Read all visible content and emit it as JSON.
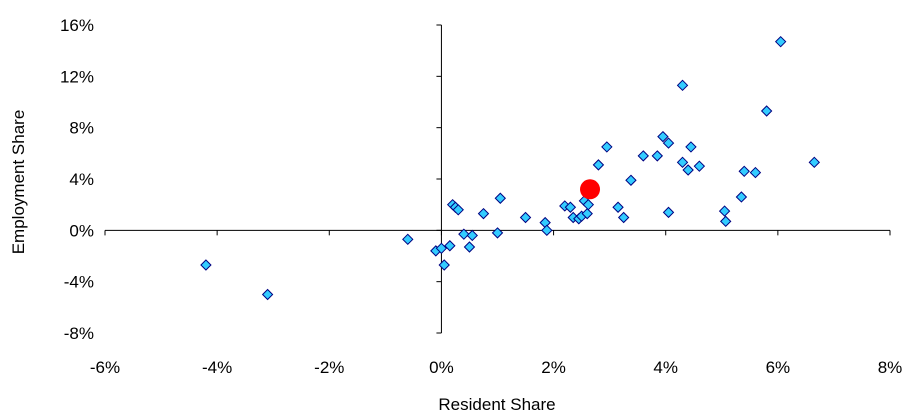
{
  "chart_data": {
    "type": "scatter",
    "title": "",
    "xlabel": "Resident Share",
    "ylabel": "Employment Share",
    "xlim": [
      -6,
      8
    ],
    "ylim": [
      -8,
      16
    ],
    "xticks": [
      -6,
      -4,
      -2,
      0,
      2,
      4,
      6,
      8
    ],
    "yticks": [
      -8,
      -4,
      0,
      4,
      8,
      12,
      16
    ],
    "xtick_labels": [
      "-6%",
      "-4%",
      "-2%",
      "0%",
      "2%",
      "4%",
      "6%",
      "8%"
    ],
    "ytick_labels": [
      "-8%",
      "-4%",
      "0%",
      "4%",
      "8%",
      "12%",
      "16%"
    ],
    "grid": false,
    "legend": false,
    "colors": {
      "marker_fill": "#33ccff",
      "marker_stroke": "#000080",
      "highlight": "#ff0000"
    },
    "series": [
      {
        "marker": "diamond",
        "x": [
          -4.2,
          -3.1,
          -0.6,
          -0.1,
          0.0,
          0.05,
          0.15,
          0.2,
          0.25,
          0.3,
          0.4,
          0.5,
          0.55,
          0.75,
          1.0,
          1.05,
          1.5,
          1.85,
          1.88,
          2.2,
          2.3,
          2.35,
          2.45,
          2.5,
          2.55,
          2.6,
          2.62,
          2.8,
          2.95,
          3.15,
          3.25,
          3.38,
          3.6,
          3.85,
          3.95,
          4.05,
          4.05,
          4.3,
          4.3,
          4.4,
          4.45,
          4.6,
          5.05,
          5.07,
          5.35,
          5.4,
          5.6,
          5.8,
          6.05,
          6.65
        ],
        "y": [
          -2.7,
          -5.0,
          -0.7,
          -1.6,
          -1.4,
          -2.7,
          -1.2,
          2.0,
          1.8,
          1.6,
          -0.3,
          -1.3,
          -0.4,
          1.3,
          -0.2,
          2.5,
          1.0,
          0.6,
          0.0,
          1.9,
          1.8,
          1.0,
          0.9,
          1.1,
          2.3,
          1.3,
          2.0,
          5.1,
          6.5,
          1.8,
          1.0,
          3.9,
          5.8,
          5.8,
          7.3,
          6.8,
          1.4,
          11.3,
          5.3,
          4.7,
          6.5,
          5.0,
          1.5,
          0.7,
          2.6,
          4.6,
          4.5,
          9.3,
          14.7,
          5.3
        ]
      },
      {
        "marker": "circle",
        "x": [
          2.65
        ],
        "y": [
          3.2
        ]
      }
    ]
  }
}
